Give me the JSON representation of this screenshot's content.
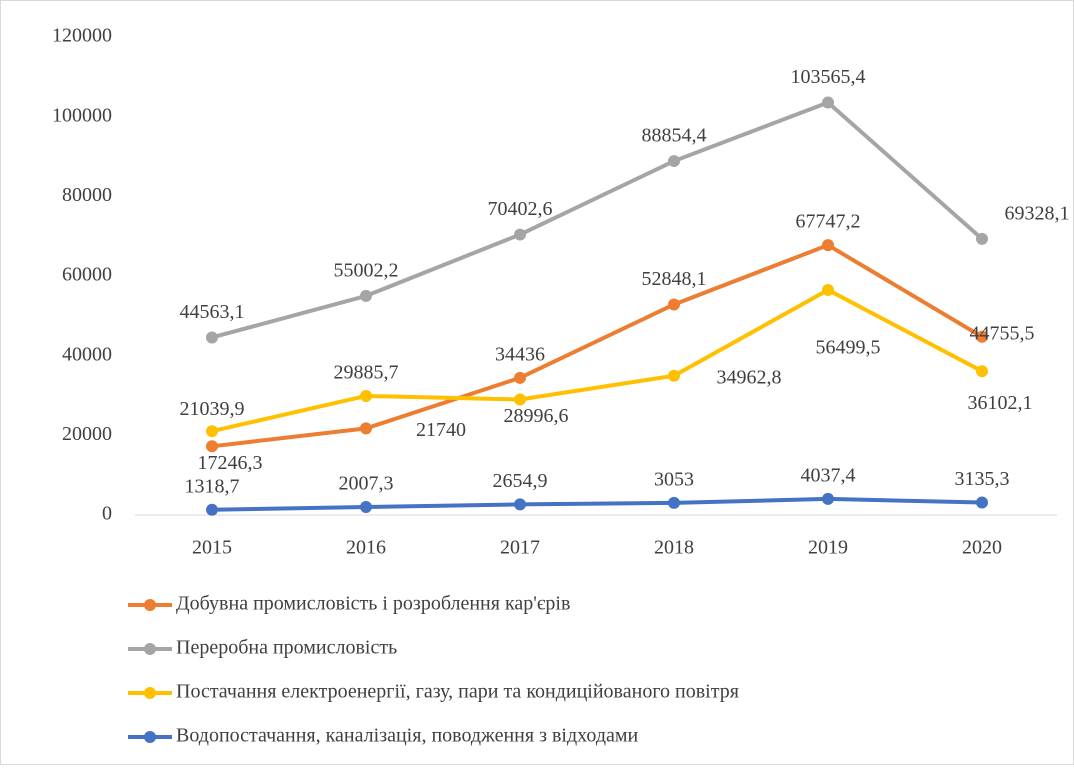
{
  "chart_data": {
    "type": "line",
    "categories": [
      "2015",
      "2016",
      "2017",
      "2018",
      "2019",
      "2020"
    ],
    "series": [
      {
        "name": "Добувна промисловість і розроблення кар'єрів",
        "color": "#ed7d31",
        "values": [
          17246.3,
          21740,
          34436,
          52848.1,
          67747.2,
          44755.5
        ],
        "value_labels": [
          "17246,3",
          "21740",
          "34436",
          "52848,1",
          "67747,2",
          "44755,5"
        ]
      },
      {
        "name": "Переробна промисловість",
        "color": "#a5a5a5",
        "values": [
          44563.1,
          55002.2,
          70402.6,
          88854.4,
          103565.4,
          69328.1
        ],
        "value_labels": [
          "44563,1",
          "55002,2",
          "70402,6",
          "88854,4",
          "103565,4",
          "69328,1"
        ]
      },
      {
        "name": "Постачання електроенергії, газу, пари та кондиційованого повітря",
        "color": "#ffc000",
        "values": [
          21039.9,
          29885.7,
          28996.6,
          34962.8,
          56499.5,
          36102.1
        ],
        "value_labels": [
          "21039,9",
          "29885,7",
          "28996,6",
          "34962,8",
          "56499,5",
          "36102,1"
        ]
      },
      {
        "name": "Водопостачання, каналізація, поводження з відходами",
        "color": "#4472c4",
        "values": [
          1318.7,
          2007.3,
          2654.9,
          3053,
          4037.4,
          3135.3
        ],
        "value_labels": [
          "1318,7",
          "2007,3",
          "2654,9",
          "3053",
          "4037,4",
          "3135,3"
        ]
      }
    ],
    "ylim": [
      0,
      120000
    ],
    "yticks": [
      0,
      20000,
      40000,
      60000,
      80000,
      100000,
      120000
    ],
    "grid": false,
    "legend": "bottom"
  }
}
